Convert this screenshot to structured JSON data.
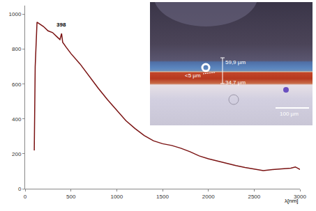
{
  "chart_data": {
    "type": "line",
    "x_label": "λ[nm]",
    "color": "#7a1212",
    "x": [
      100,
      110,
      130,
      160,
      200,
      250,
      300,
      350,
      380,
      398,
      410,
      450,
      500,
      600,
      700,
      800,
      900,
      1000,
      1100,
      1200,
      1300,
      1400,
      1500,
      1600,
      1700,
      1800,
      1900,
      2000,
      2100,
      2200,
      2300,
      2400,
      2500,
      2600,
      2700,
      2800,
      2900,
      2950,
      3000
    ],
    "values": [
      220,
      700,
      955,
      945,
      930,
      905,
      895,
      870,
      855,
      890,
      840,
      810,
      775,
      715,
      645,
      575,
      510,
      450,
      390,
      345,
      305,
      275,
      258,
      248,
      232,
      212,
      188,
      172,
      158,
      146,
      133,
      122,
      112,
      104,
      110,
      114,
      118,
      125,
      110
    ],
    "xlim": [
      0,
      3000
    ],
    "xticks": [
      0,
      500,
      1000,
      1500,
      2000,
      2500,
      3000
    ],
    "ylim": [
      0,
      1050
    ],
    "yticks": [
      0,
      200,
      400,
      600,
      800,
      1000
    ],
    "grid": false,
    "annotations": [
      {
        "text": "398",
        "x": 398,
        "y": 890
      }
    ],
    "inset_labels": [
      "59,9 µm",
      "<5 µm",
      "34,7 µm",
      "100 µm"
    ]
  }
}
